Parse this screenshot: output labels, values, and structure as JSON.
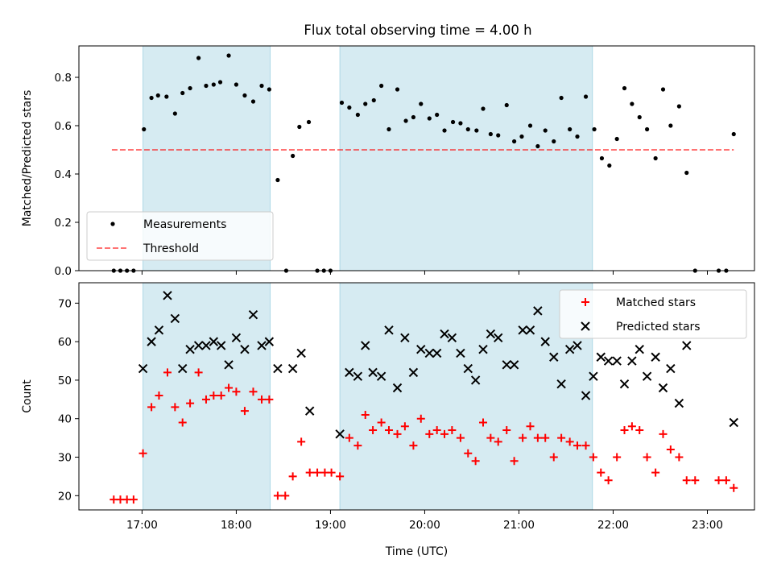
{
  "title": "Flux total observing time = 4.00 h",
  "colors": {
    "band": "#add8e6",
    "matched": "#ff0000",
    "threshold": "#ff0000",
    "point": "#000000"
  },
  "chart_data": [
    {
      "type": "scatter",
      "ylabel": "Matched/Predicted stars",
      "xlim": [
        16.33,
        23.5
      ],
      "ylim": [
        0,
        0.93
      ],
      "yticks": [
        0.0,
        0.2,
        0.4,
        0.6,
        0.8
      ],
      "ytick_labels": [
        "0.0",
        "0.2",
        "0.4",
        "0.6",
        "0.8"
      ],
      "legend": {
        "position": "lower-left",
        "entries": [
          "Measurements",
          "Threshold"
        ]
      },
      "threshold": {
        "y": 0.5,
        "x": [
          16.68,
          23.28
        ],
        "name": "Threshold"
      },
      "shaded_intervals": [
        [
          17.01,
          18.36
        ],
        [
          19.1,
          21.78
        ]
      ],
      "series": [
        {
          "name": "Measurements",
          "marker": "dot",
          "points": [
            [
              16.7,
              0
            ],
            [
              16.77,
              0
            ],
            [
              16.84,
              0
            ],
            [
              16.91,
              0
            ],
            [
              17.02,
              0.585
            ],
            [
              17.1,
              0.715
            ],
            [
              17.17,
              0.725
            ],
            [
              17.26,
              0.72
            ],
            [
              17.35,
              0.65
            ],
            [
              17.43,
              0.735
            ],
            [
              17.51,
              0.755
            ],
            [
              17.6,
              0.88
            ],
            [
              17.68,
              0.765
            ],
            [
              17.76,
              0.77
            ],
            [
              17.83,
              0.78
            ],
            [
              17.92,
              0.89
            ],
            [
              18.0,
              0.77
            ],
            [
              18.09,
              0.725
            ],
            [
              18.18,
              0.7
            ],
            [
              18.27,
              0.765
            ],
            [
              18.35,
              0.75
            ],
            [
              18.44,
              0.375
            ],
            [
              18.53,
              0
            ],
            [
              18.6,
              0.475
            ],
            [
              18.67,
              0.595
            ],
            [
              18.77,
              0.615
            ],
            [
              18.86,
              0
            ],
            [
              18.93,
              0
            ],
            [
              19.0,
              0
            ],
            [
              19.12,
              0.695
            ],
            [
              19.2,
              0.675
            ],
            [
              19.29,
              0.645
            ],
            [
              19.37,
              0.69
            ],
            [
              19.46,
              0.705
            ],
            [
              19.54,
              0.765
            ],
            [
              19.62,
              0.585
            ],
            [
              19.71,
              0.75
            ],
            [
              19.8,
              0.62
            ],
            [
              19.88,
              0.635
            ],
            [
              19.96,
              0.69
            ],
            [
              20.05,
              0.63
            ],
            [
              20.13,
              0.645
            ],
            [
              20.21,
              0.58
            ],
            [
              20.3,
              0.615
            ],
            [
              20.38,
              0.61
            ],
            [
              20.46,
              0.585
            ],
            [
              20.55,
              0.58
            ],
            [
              20.62,
              0.67
            ],
            [
              20.7,
              0.565
            ],
            [
              20.78,
              0.56
            ],
            [
              20.87,
              0.685
            ],
            [
              20.95,
              0.535
            ],
            [
              21.03,
              0.555
            ],
            [
              21.12,
              0.6
            ],
            [
              21.2,
              0.515
            ],
            [
              21.28,
              0.58
            ],
            [
              21.37,
              0.535
            ],
            [
              21.45,
              0.715
            ],
            [
              21.54,
              0.585
            ],
            [
              21.62,
              0.555
            ],
            [
              21.71,
              0.72
            ],
            [
              21.8,
              0.585
            ],
            [
              21.88,
              0.465
            ],
            [
              21.96,
              0.435
            ],
            [
              22.04,
              0.545
            ],
            [
              22.12,
              0.755
            ],
            [
              22.2,
              0.69
            ],
            [
              22.28,
              0.635
            ],
            [
              22.36,
              0.585
            ],
            [
              22.45,
              0.465
            ],
            [
              22.53,
              0.75
            ],
            [
              22.61,
              0.6
            ],
            [
              22.7,
              0.68
            ],
            [
              22.78,
              0.405
            ],
            [
              22.87,
              0
            ],
            [
              23.12,
              0
            ],
            [
              23.2,
              0
            ],
            [
              23.28,
              0.565
            ]
          ]
        }
      ]
    },
    {
      "type": "scatter",
      "xlabel": "Time (UTC)",
      "ylabel": "Count",
      "xlim": [
        16.33,
        23.5
      ],
      "ylim": [
        16.3,
        75.3
      ],
      "yticks": [
        20,
        30,
        40,
        50,
        60,
        70
      ],
      "ytick_labels": [
        "20",
        "30",
        "40",
        "50",
        "60",
        "70"
      ],
      "xticks": [
        17,
        18,
        19,
        20,
        21,
        22,
        23
      ],
      "xtick_labels": [
        "17:00",
        "18:00",
        "19:00",
        "20:00",
        "21:00",
        "22:00",
        "23:00"
      ],
      "legend": {
        "position": "top-right",
        "entries": [
          "Matched stars",
          "Predicted stars"
        ]
      },
      "shaded_intervals": [
        [
          17.01,
          18.36
        ],
        [
          19.1,
          21.78
        ]
      ],
      "series": [
        {
          "name": "Matched stars",
          "marker": "plus",
          "points": [
            [
              16.7,
              19
            ],
            [
              16.77,
              19
            ],
            [
              16.84,
              19
            ],
            [
              16.91,
              19
            ],
            [
              17.01,
              31
            ],
            [
              17.1,
              43
            ],
            [
              17.18,
              46
            ],
            [
              17.27,
              52
            ],
            [
              17.35,
              43
            ],
            [
              17.43,
              39
            ],
            [
              17.51,
              44
            ],
            [
              17.6,
              52
            ],
            [
              17.68,
              45
            ],
            [
              17.76,
              46
            ],
            [
              17.84,
              46
            ],
            [
              17.92,
              48
            ],
            [
              18.0,
              47
            ],
            [
              18.09,
              42
            ],
            [
              18.18,
              47
            ],
            [
              18.27,
              45
            ],
            [
              18.35,
              45
            ],
            [
              18.44,
              20
            ],
            [
              18.52,
              20
            ],
            [
              18.6,
              25
            ],
            [
              18.69,
              34
            ],
            [
              18.78,
              26
            ],
            [
              18.86,
              26
            ],
            [
              18.94,
              26
            ],
            [
              19.01,
              26
            ],
            [
              19.1,
              25
            ],
            [
              19.2,
              35
            ],
            [
              19.29,
              33
            ],
            [
              19.37,
              41
            ],
            [
              19.45,
              37
            ],
            [
              19.54,
              39
            ],
            [
              19.62,
              37
            ],
            [
              19.71,
              36
            ],
            [
              19.79,
              38
            ],
            [
              19.88,
              33
            ],
            [
              19.96,
              40
            ],
            [
              20.05,
              36
            ],
            [
              20.13,
              37
            ],
            [
              20.21,
              36
            ],
            [
              20.29,
              37
            ],
            [
              20.38,
              35
            ],
            [
              20.46,
              31
            ],
            [
              20.54,
              29
            ],
            [
              20.62,
              39
            ],
            [
              20.7,
              35
            ],
            [
              20.78,
              34
            ],
            [
              20.87,
              37
            ],
            [
              20.95,
              29
            ],
            [
              21.04,
              35
            ],
            [
              21.12,
              38
            ],
            [
              21.2,
              35
            ],
            [
              21.28,
              35
            ],
            [
              21.37,
              30
            ],
            [
              21.45,
              35
            ],
            [
              21.54,
              34
            ],
            [
              21.62,
              33
            ],
            [
              21.71,
              33
            ],
            [
              21.79,
              30
            ],
            [
              21.87,
              26
            ],
            [
              21.95,
              24
            ],
            [
              22.04,
              30
            ],
            [
              22.12,
              37
            ],
            [
              22.2,
              38
            ],
            [
              22.28,
              37
            ],
            [
              22.36,
              30
            ],
            [
              22.45,
              26
            ],
            [
              22.53,
              36
            ],
            [
              22.61,
              32
            ],
            [
              22.7,
              30
            ],
            [
              22.78,
              24
            ],
            [
              22.87,
              24
            ],
            [
              23.12,
              24
            ],
            [
              23.2,
              24
            ],
            [
              23.28,
              22
            ]
          ]
        },
        {
          "name": "Predicted stars",
          "marker": "x",
          "points": [
            [
              17.01,
              53
            ],
            [
              17.1,
              60
            ],
            [
              17.18,
              63
            ],
            [
              17.27,
              72
            ],
            [
              17.35,
              66
            ],
            [
              17.43,
              53
            ],
            [
              17.51,
              58
            ],
            [
              17.6,
              59
            ],
            [
              17.68,
              59
            ],
            [
              17.76,
              60
            ],
            [
              17.84,
              59
            ],
            [
              17.92,
              54
            ],
            [
              18.0,
              61
            ],
            [
              18.09,
              58
            ],
            [
              18.18,
              67
            ],
            [
              18.27,
              59
            ],
            [
              18.35,
              60
            ],
            [
              18.44,
              53
            ],
            [
              18.6,
              53
            ],
            [
              18.69,
              57
            ],
            [
              18.78,
              42
            ],
            [
              19.1,
              36
            ],
            [
              19.2,
              52
            ],
            [
              19.29,
              51
            ],
            [
              19.37,
              59
            ],
            [
              19.45,
              52
            ],
            [
              19.54,
              51
            ],
            [
              19.62,
              63
            ],
            [
              19.71,
              48
            ],
            [
              19.79,
              61
            ],
            [
              19.88,
              52
            ],
            [
              19.96,
              58
            ],
            [
              20.05,
              57
            ],
            [
              20.13,
              57
            ],
            [
              20.21,
              62
            ],
            [
              20.29,
              61
            ],
            [
              20.38,
              57
            ],
            [
              20.46,
              53
            ],
            [
              20.54,
              50
            ],
            [
              20.62,
              58
            ],
            [
              20.7,
              62
            ],
            [
              20.78,
              61
            ],
            [
              20.87,
              54
            ],
            [
              20.95,
              54
            ],
            [
              21.04,
              63
            ],
            [
              21.12,
              63
            ],
            [
              21.2,
              68
            ],
            [
              21.28,
              60
            ],
            [
              21.37,
              56
            ],
            [
              21.45,
              49
            ],
            [
              21.54,
              58
            ],
            [
              21.62,
              59
            ],
            [
              21.71,
              46
            ],
            [
              21.79,
              51
            ],
            [
              21.87,
              56
            ],
            [
              21.95,
              55
            ],
            [
              22.04,
              55
            ],
            [
              22.12,
              49
            ],
            [
              22.2,
              55
            ],
            [
              22.28,
              58
            ],
            [
              22.36,
              51
            ],
            [
              22.45,
              56
            ],
            [
              22.53,
              48
            ],
            [
              22.61,
              53
            ],
            [
              22.7,
              44
            ],
            [
              22.78,
              59
            ],
            [
              23.28,
              39
            ]
          ]
        }
      ]
    }
  ]
}
